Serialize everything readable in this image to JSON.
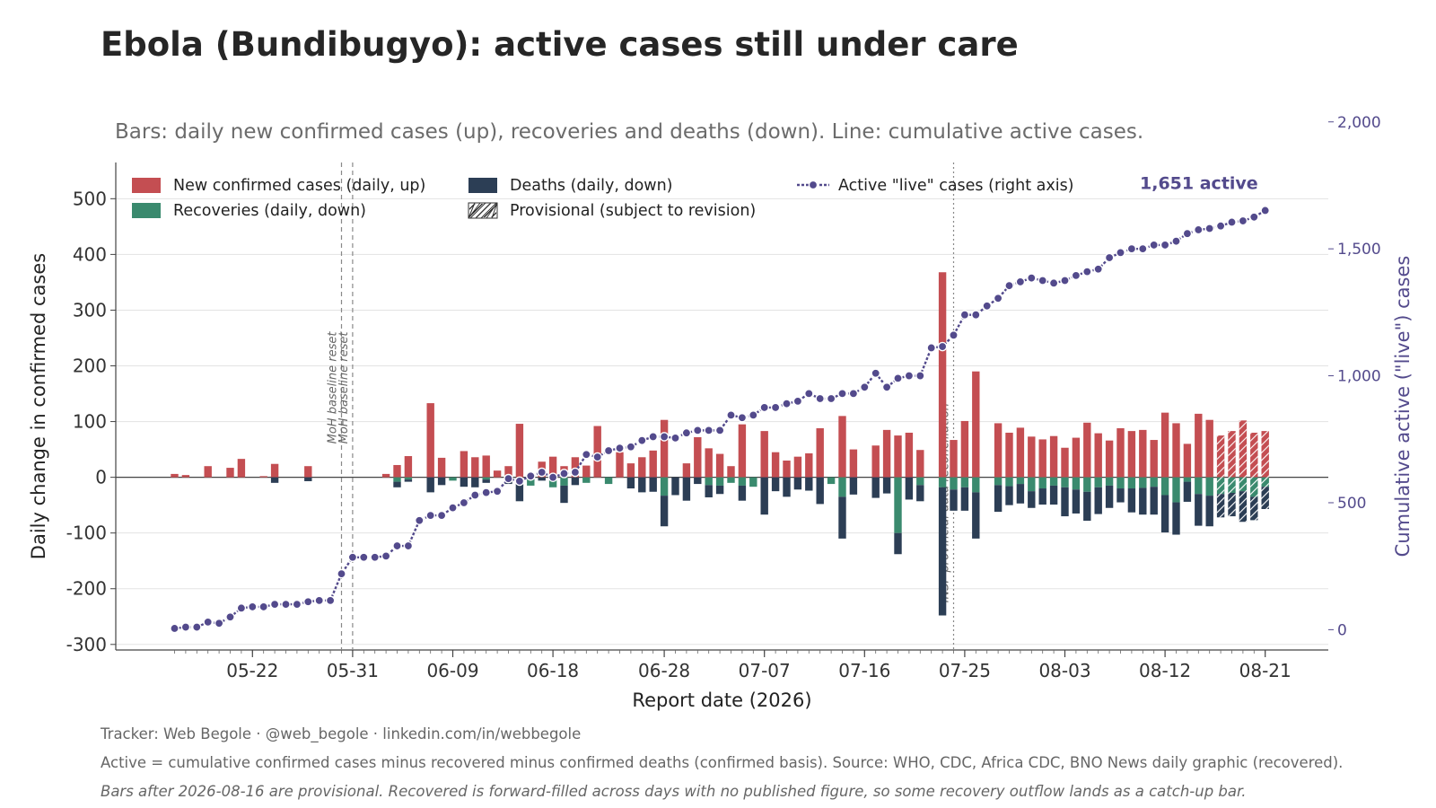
{
  "header": {
    "title": "Ebola (Bundibugyo): active cases still under care",
    "subtitle": "Bars: daily new confirmed cases (up), recoveries and deaths (down). Line: cumulative active cases."
  },
  "footer": {
    "line1": "Tracker: Web Begole · @web_begole · linkedin.com/in/webbegole",
    "line2": "Active = cumulative confirmed cases minus recovered minus confirmed deaths (confirmed basis). Source: WHO, CDC, Africa CDC, BNO News daily graphic (recovered).",
    "line3": "Bars after 2026-08-16 are provisional. Recovered is forward-filled across days with no published figure, so some recovery outflow lands as a catch-up bar."
  },
  "colors": {
    "new_cases": "#c44e52",
    "recoveries": "#3a8a6e",
    "deaths": "#2c3e55",
    "active_line": "#534a8c",
    "grid": "#e3e3e3",
    "annotation_line": "#888888"
  },
  "chart_data": {
    "type": "bar",
    "xlabel": "Report date (2026)",
    "ylabel": "Daily change in confirmed cases",
    "y2label": "Cumulative active (\"live\") cases",
    "ylim": [
      -310,
      565
    ],
    "y2lim": [
      -80,
      1840
    ],
    "yticks": [
      500,
      400,
      300,
      200,
      100,
      0,
      -100,
      -200,
      -300
    ],
    "y2ticks": [
      2000,
      1500,
      1000,
      500,
      0
    ],
    "xticks": [
      "05-22",
      "05-31",
      "06-09",
      "06-18",
      "06-28",
      "07-07",
      "07-16",
      "07-25",
      "08-03",
      "08-12",
      "08-21"
    ],
    "grid": true,
    "legend": {
      "placement": "top",
      "entries": [
        {
          "label": "New confirmed cases (daily, up)",
          "kind": "new"
        },
        {
          "label": "Recoveries (daily, down)",
          "kind": "rec"
        },
        {
          "label": "Deaths (daily, down)",
          "kind": "death"
        },
        {
          "label": "Provisional (subject to revision)",
          "kind": "prov"
        },
        {
          "label": "Active \"live\" cases (right axis)",
          "kind": "line"
        }
      ]
    },
    "annotations": {
      "baseline_reset": [
        "MoH baseline reset",
        "MoH baseline reset"
      ],
      "reconciliation": "INSP provincial data reconciliation",
      "final_callout": "1,651 active"
    },
    "provisional_after": "08-16",
    "dates": [
      "05-15",
      "05-16",
      "05-17",
      "05-18",
      "05-19",
      "05-20",
      "05-21",
      "05-22",
      "05-23",
      "05-24",
      "05-25",
      "05-26",
      "05-27",
      "05-28",
      "05-29",
      "05-30",
      "05-31",
      "06-01",
      "06-02",
      "06-03",
      "06-04",
      "06-05",
      "06-06",
      "06-07",
      "06-08",
      "06-09",
      "06-10",
      "06-11",
      "06-12",
      "06-13",
      "06-14",
      "06-15",
      "06-16",
      "06-17",
      "06-18",
      "06-19",
      "06-20",
      "06-21",
      "06-22",
      "06-23",
      "06-24",
      "06-25",
      "06-26",
      "06-27",
      "06-28",
      "06-29",
      "06-30",
      "07-01",
      "07-02",
      "07-03",
      "07-04",
      "07-05",
      "07-06",
      "07-07",
      "07-08",
      "07-09",
      "07-10",
      "07-11",
      "07-12",
      "07-13",
      "07-14",
      "07-15",
      "07-16",
      "07-17",
      "07-18",
      "07-19",
      "07-20",
      "07-21",
      "07-22",
      "07-23",
      "07-24",
      "07-25",
      "07-26",
      "07-27",
      "07-28",
      "07-29",
      "07-30",
      "07-31",
      "08-01",
      "08-02",
      "08-03",
      "08-04",
      "08-05",
      "08-06",
      "08-07",
      "08-08",
      "08-09",
      "08-10",
      "08-11",
      "08-12",
      "08-13",
      "08-14",
      "08-15",
      "08-16",
      "08-17",
      "08-18",
      "08-19",
      "08-20",
      "08-21"
    ],
    "series": [
      {
        "name": "New confirmed cases (daily, up)",
        "values": [
          6,
          4,
          0,
          20,
          0,
          17,
          33,
          0,
          2,
          24,
          0,
          0,
          20,
          0,
          0,
          0,
          0,
          0,
          0,
          6,
          22,
          38,
          0,
          133,
          35,
          0,
          47,
          36,
          39,
          12,
          20,
          96,
          0,
          28,
          37,
          20,
          36,
          21,
          92,
          0,
          45,
          25,
          36,
          48,
          103,
          0,
          25,
          72,
          52,
          42,
          20,
          95,
          0,
          83,
          45,
          30,
          37,
          43,
          88,
          0,
          110,
          50,
          0,
          57,
          85,
          75,
          80,
          49,
          0,
          368,
          67,
          101,
          190,
          0,
          97,
          80,
          89,
          73,
          68,
          74,
          53,
          71,
          98,
          79,
          66,
          88,
          83,
          85,
          67,
          116,
          97,
          60,
          114,
          103,
          75,
          83,
          102,
          80,
          83
        ]
      },
      {
        "name": "Recoveries (daily, down)",
        "values": [
          0,
          0,
          0,
          0,
          0,
          0,
          0,
          0,
          0,
          0,
          0,
          0,
          0,
          0,
          0,
          0,
          0,
          0,
          0,
          0,
          8,
          4,
          0,
          0,
          0,
          6,
          0,
          0,
          4,
          0,
          0,
          0,
          15,
          0,
          18,
          15,
          0,
          10,
          0,
          12,
          0,
          0,
          0,
          0,
          33,
          0,
          0,
          0,
          14,
          15,
          10,
          15,
          17,
          0,
          0,
          0,
          0,
          0,
          0,
          12,
          35,
          0,
          0,
          0,
          0,
          100,
          0,
          14,
          0,
          18,
          22,
          18,
          27,
          0,
          14,
          16,
          12,
          25,
          20,
          15,
          18,
          22,
          26,
          18,
          15,
          20,
          20,
          19,
          17,
          32,
          45,
          8,
          30,
          33,
          30,
          28,
          25,
          35,
          17
        ]
      },
      {
        "name": "Deaths (daily, down)",
        "values": [
          0,
          0,
          0,
          0,
          0,
          0,
          0,
          0,
          0,
          10,
          0,
          0,
          7,
          0,
          0,
          0,
          0,
          0,
          0,
          0,
          10,
          4,
          0,
          27,
          14,
          0,
          17,
          18,
          6,
          0,
          12,
          43,
          0,
          6,
          0,
          31,
          14,
          0,
          0,
          0,
          0,
          20,
          27,
          26,
          55,
          32,
          42,
          12,
          22,
          15,
          0,
          27,
          0,
          67,
          25,
          35,
          22,
          24,
          48,
          0,
          75,
          31,
          0,
          37,
          29,
          38,
          40,
          29,
          0,
          230,
          38,
          42,
          83,
          0,
          48,
          34,
          35,
          30,
          29,
          34,
          52,
          43,
          52,
          48,
          40,
          25,
          43,
          48,
          50,
          67,
          58,
          36,
          57,
          55,
          42,
          42,
          55,
          42,
          40
        ]
      },
      {
        "name": "Active \"live\" cases (right axis)",
        "values": [
          5,
          10,
          10,
          30,
          25,
          50,
          85,
          90,
          90,
          100,
          100,
          100,
          110,
          115,
          115,
          220,
          285,
          285,
          285,
          290,
          330,
          330,
          430,
          450,
          450,
          480,
          500,
          530,
          540,
          545,
          595,
          585,
          605,
          620,
          600,
          615,
          620,
          690,
          680,
          705,
          715,
          720,
          745,
          760,
          760,
          755,
          775,
          785,
          785,
          785,
          845,
          835,
          845,
          875,
          875,
          890,
          900,
          930,
          910,
          910,
          930,
          930,
          955,
          1010,
          955,
          990,
          1000,
          1000,
          1110,
          1115,
          1160,
          1240,
          1240,
          1275,
          1305,
          1355,
          1370,
          1385,
          1375,
          1365,
          1375,
          1395,
          1410,
          1420,
          1465,
          1485,
          1500,
          1500,
          1515,
          1515,
          1530,
          1560,
          1575,
          1580,
          1590,
          1605,
          1610,
          1625,
          1651
        ]
      }
    ]
  }
}
